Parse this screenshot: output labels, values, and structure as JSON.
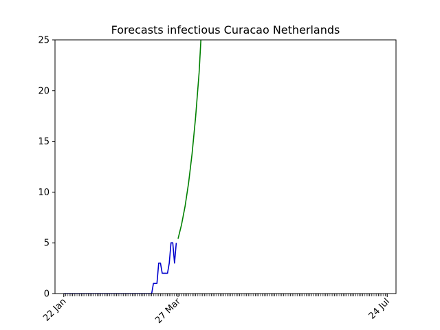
{
  "chart_data": {
    "type": "line",
    "title": "Forecasts infectious Curacao Netherlands",
    "xlabel": "",
    "ylabel": "",
    "x_start": "2020-01-22",
    "x_end": "2020-07-24",
    "xlim": [
      "2020-01-22",
      "2020-07-24"
    ],
    "ylim": [
      0,
      25
    ],
    "yticks": [
      0,
      5,
      10,
      15,
      20,
      25
    ],
    "xtick_labels": [
      {
        "label": "22 Jan",
        "date": "2020-01-22"
      },
      {
        "label": "27 Mar",
        "date": "2020-03-27"
      },
      {
        "label": "24 Jul",
        "date": "2020-07-24"
      }
    ],
    "grid": false,
    "legend": "none",
    "series": [
      {
        "color": "#0000cc",
        "points": [
          {
            "x": "2020-01-22",
            "y": 0
          },
          {
            "x": "2020-03-12",
            "y": 0
          },
          {
            "x": "2020-03-13",
            "y": 1
          },
          {
            "x": "2020-03-15",
            "y": 1
          },
          {
            "x": "2020-03-16",
            "y": 3
          },
          {
            "x": "2020-03-17",
            "y": 3
          },
          {
            "x": "2020-03-18",
            "y": 2
          },
          {
            "x": "2020-03-21",
            "y": 2
          },
          {
            "x": "2020-03-22",
            "y": 3
          },
          {
            "x": "2020-03-23",
            "y": 5
          },
          {
            "x": "2020-03-24",
            "y": 5
          },
          {
            "x": "2020-03-25",
            "y": 3
          },
          {
            "x": "2020-03-26",
            "y": 5
          }
        ]
      },
      {
        "color": "#008000",
        "points": [
          {
            "x": "2020-03-27",
            "y": 5.4
          },
          {
            "x": "2020-03-29",
            "y": 6.8
          },
          {
            "x": "2020-03-31",
            "y": 8.6
          },
          {
            "x": "2020-04-02",
            "y": 10.9
          },
          {
            "x": "2020-04-04",
            "y": 13.8
          },
          {
            "x": "2020-04-06",
            "y": 17.4
          },
          {
            "x": "2020-04-08",
            "y": 21.8
          },
          {
            "x": "2020-04-09",
            "y": 25
          }
        ]
      }
    ]
  }
}
